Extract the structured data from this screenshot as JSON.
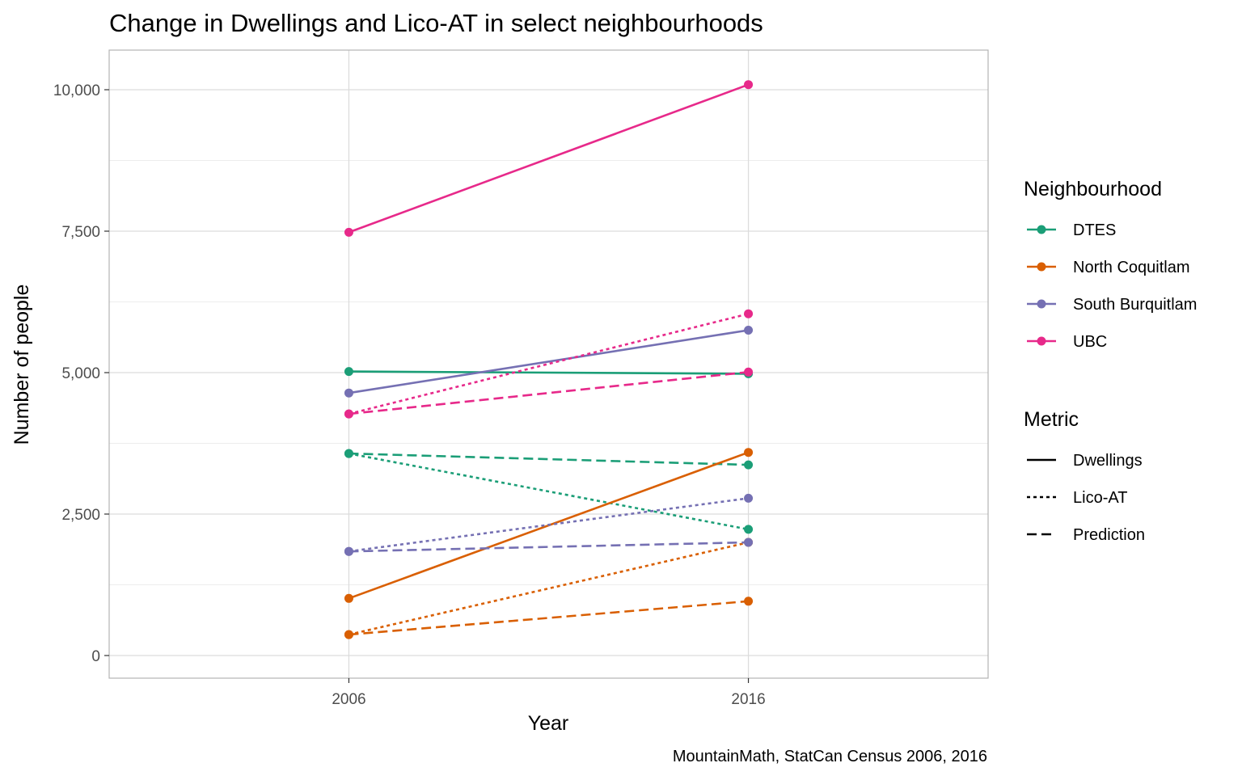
{
  "chart_data": {
    "type": "line",
    "title": "Change in Dwellings and Lico-AT in select neighbourhoods",
    "xlabel": "Year",
    "ylabel": "Number of people",
    "caption": "MountainMath, StatCan Census 2006, 2016",
    "x": [
      2006,
      2016
    ],
    "x_ticks": [
      "2006",
      "2016"
    ],
    "xlim": [
      2000,
      2022
    ],
    "ylim": [
      -400,
      10700
    ],
    "y_ticks": [
      0,
      2500,
      5000,
      7500,
      10000
    ],
    "y_tick_labels": [
      "0",
      "2,500",
      "5,000",
      "7,500",
      "10,000"
    ],
    "y_minor_ticks": [
      1250,
      3750,
      6250,
      8750
    ],
    "grid": true,
    "legend_position": "right",
    "legend": {
      "color_title": "Neighbourhood",
      "linetype_title": "Metric",
      "neighbourhoods": [
        {
          "name": "DTES",
          "color": "#1b9e77"
        },
        {
          "name": "North Coquitlam",
          "color": "#d95f02"
        },
        {
          "name": "South Burquitlam",
          "color": "#7570b3"
        },
        {
          "name": "UBC",
          "color": "#e7298a"
        }
      ],
      "metrics": [
        {
          "name": "Dwellings",
          "dash": "solid"
        },
        {
          "name": "Lico-AT",
          "dash": "dotted"
        },
        {
          "name": "Prediction",
          "dash": "dashed"
        }
      ]
    },
    "series": [
      {
        "neighbourhood": "DTES",
        "metric": "Dwellings",
        "values": [
          5020,
          4980
        ]
      },
      {
        "neighbourhood": "DTES",
        "metric": "Lico-AT",
        "values": [
          3570,
          2230
        ]
      },
      {
        "neighbourhood": "DTES",
        "metric": "Prediction",
        "values": [
          3570,
          3370
        ]
      },
      {
        "neighbourhood": "North Coquitlam",
        "metric": "Dwellings",
        "values": [
          1010,
          3590
        ]
      },
      {
        "neighbourhood": "North Coquitlam",
        "metric": "Lico-AT",
        "values": [
          370,
          2000
        ]
      },
      {
        "neighbourhood": "North Coquitlam",
        "metric": "Prediction",
        "values": [
          370,
          960
        ]
      },
      {
        "neighbourhood": "South Burquitlam",
        "metric": "Dwellings",
        "values": [
          4640,
          5750
        ]
      },
      {
        "neighbourhood": "South Burquitlam",
        "metric": "Lico-AT",
        "values": [
          1840,
          2780
        ]
      },
      {
        "neighbourhood": "South Burquitlam",
        "metric": "Prediction",
        "values": [
          1840,
          2000
        ]
      },
      {
        "neighbourhood": "UBC",
        "metric": "Dwellings",
        "values": [
          7480,
          10090
        ]
      },
      {
        "neighbourhood": "UBC",
        "metric": "Lico-AT",
        "values": [
          4270,
          6040
        ]
      },
      {
        "neighbourhood": "UBC",
        "metric": "Prediction",
        "values": [
          4270,
          5010
        ]
      }
    ]
  }
}
